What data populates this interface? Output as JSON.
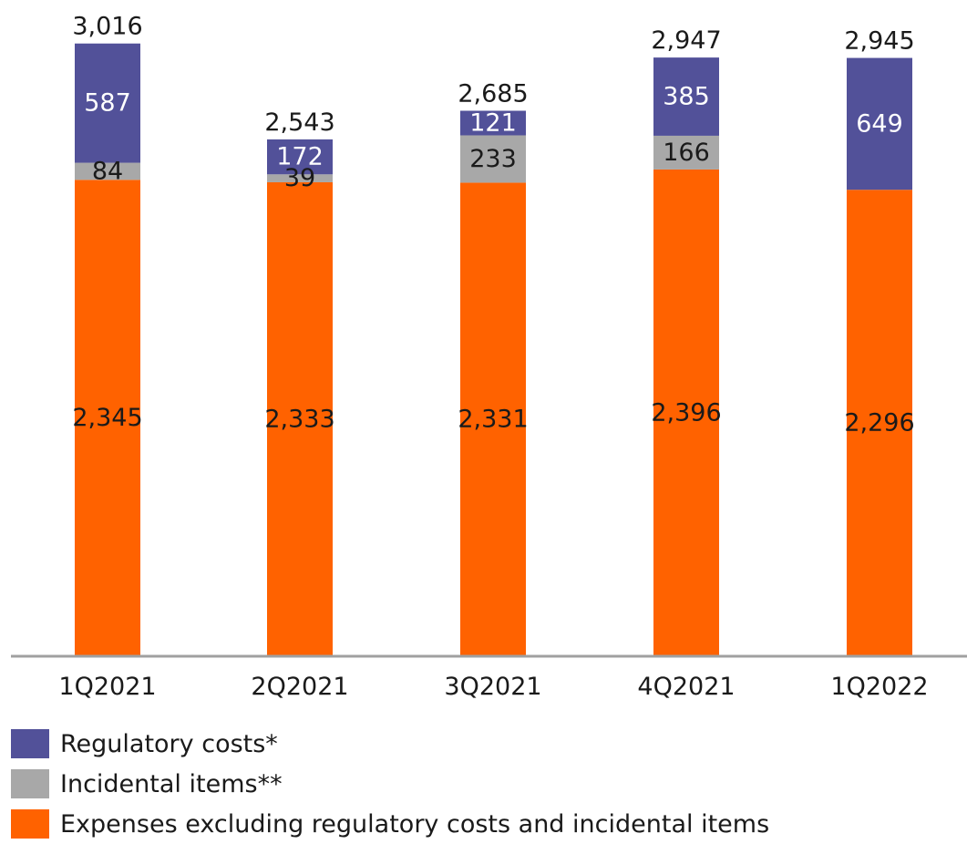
{
  "chart_data": {
    "type": "bar",
    "stacked": true,
    "categories": [
      "1Q2021",
      "2Q2021",
      "3Q2021",
      "4Q2021",
      "1Q2022"
    ],
    "series": [
      {
        "name": "Expenses excluding regulatory costs and incidental items",
        "color": "#ff6200",
        "values": [
          2345,
          2333,
          2331,
          2396,
          2296
        ],
        "labels": [
          "2,345",
          "2,333",
          "2,331",
          "2,396",
          "2,296"
        ]
      },
      {
        "name": "Incidental items**",
        "color": "#a8a8a8",
        "values": [
          84,
          39,
          233,
          166,
          0
        ],
        "labels": [
          "84",
          "39",
          "233",
          "166",
          ""
        ]
      },
      {
        "name": "Regulatory costs*",
        "color": "#525199",
        "values": [
          587,
          172,
          121,
          385,
          649
        ],
        "labels": [
          "587",
          "172",
          "121",
          "385",
          "649"
        ]
      }
    ],
    "totals": [
      3016,
      2543,
      2685,
      2947,
      2945
    ],
    "total_labels": [
      "3,016",
      "2,543",
      "2,685",
      "2,947",
      "2,945"
    ],
    "ylim": [
      0,
      3100
    ],
    "grid": false,
    "legend_position": "bottom-left",
    "legend": [
      {
        "label": "Regulatory costs*",
        "color": "#525199"
      },
      {
        "label": "Incidental items**",
        "color": "#a8a8a8"
      },
      {
        "label": "Expenses excluding regulatory costs and incidental items",
        "color": "#ff6200"
      }
    ]
  }
}
